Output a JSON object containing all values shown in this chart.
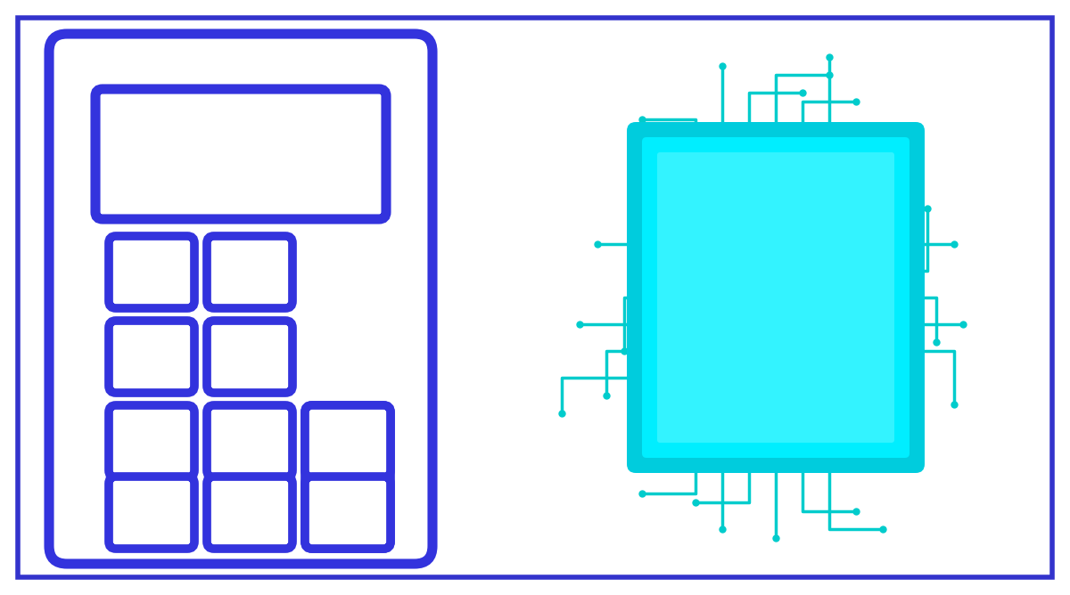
{
  "background_color": "#ffffff",
  "border_color": "#3333cc",
  "border_linewidth": 4,
  "calc_color": "#3333dd",
  "chip_fill_color": "#00eeff",
  "chip_border_color": "#00ccdd",
  "circuit_color": "#00cccc",
  "fig_width": 12.0,
  "fig_height": 6.68
}
